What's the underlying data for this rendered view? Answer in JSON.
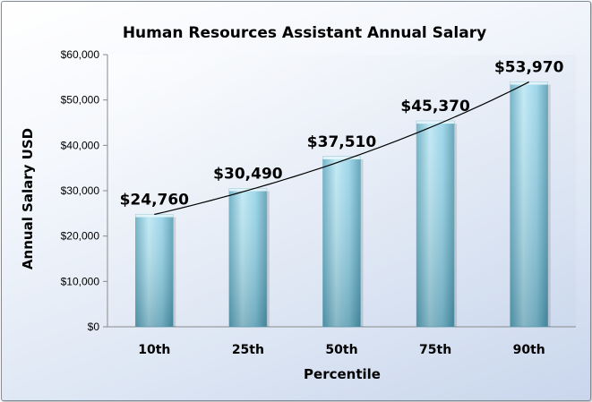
{
  "chart_data": {
    "type": "bar",
    "title": "Human Resources Assistant Annual Salary",
    "xlabel": "Percentile",
    "ylabel": "Annual Salary USD",
    "categories": [
      "10th",
      "25th",
      "50th",
      "75th",
      "90th"
    ],
    "values": [
      24760,
      30490,
      37510,
      45370,
      53970
    ],
    "data_labels": [
      "$24,760",
      "$30,490",
      "$37,510",
      "$45,370",
      "$53,970"
    ],
    "ylim": [
      0,
      60000
    ],
    "y_ticks": [
      0,
      10000,
      20000,
      30000,
      40000,
      50000,
      60000
    ],
    "y_tick_labels": [
      "$0",
      "$10,000",
      "$20,000",
      "$30,000",
      "$40,000",
      "$50,000",
      "$60,000"
    ],
    "grid": false,
    "legend": false,
    "trendline": "exponential",
    "colors": {
      "bar_light": "#b9e4f0",
      "bar_mid": "#8fd0e6",
      "bar_dark": "#4f97ad",
      "trendline": "#000000",
      "background": "#dde6f4"
    }
  }
}
